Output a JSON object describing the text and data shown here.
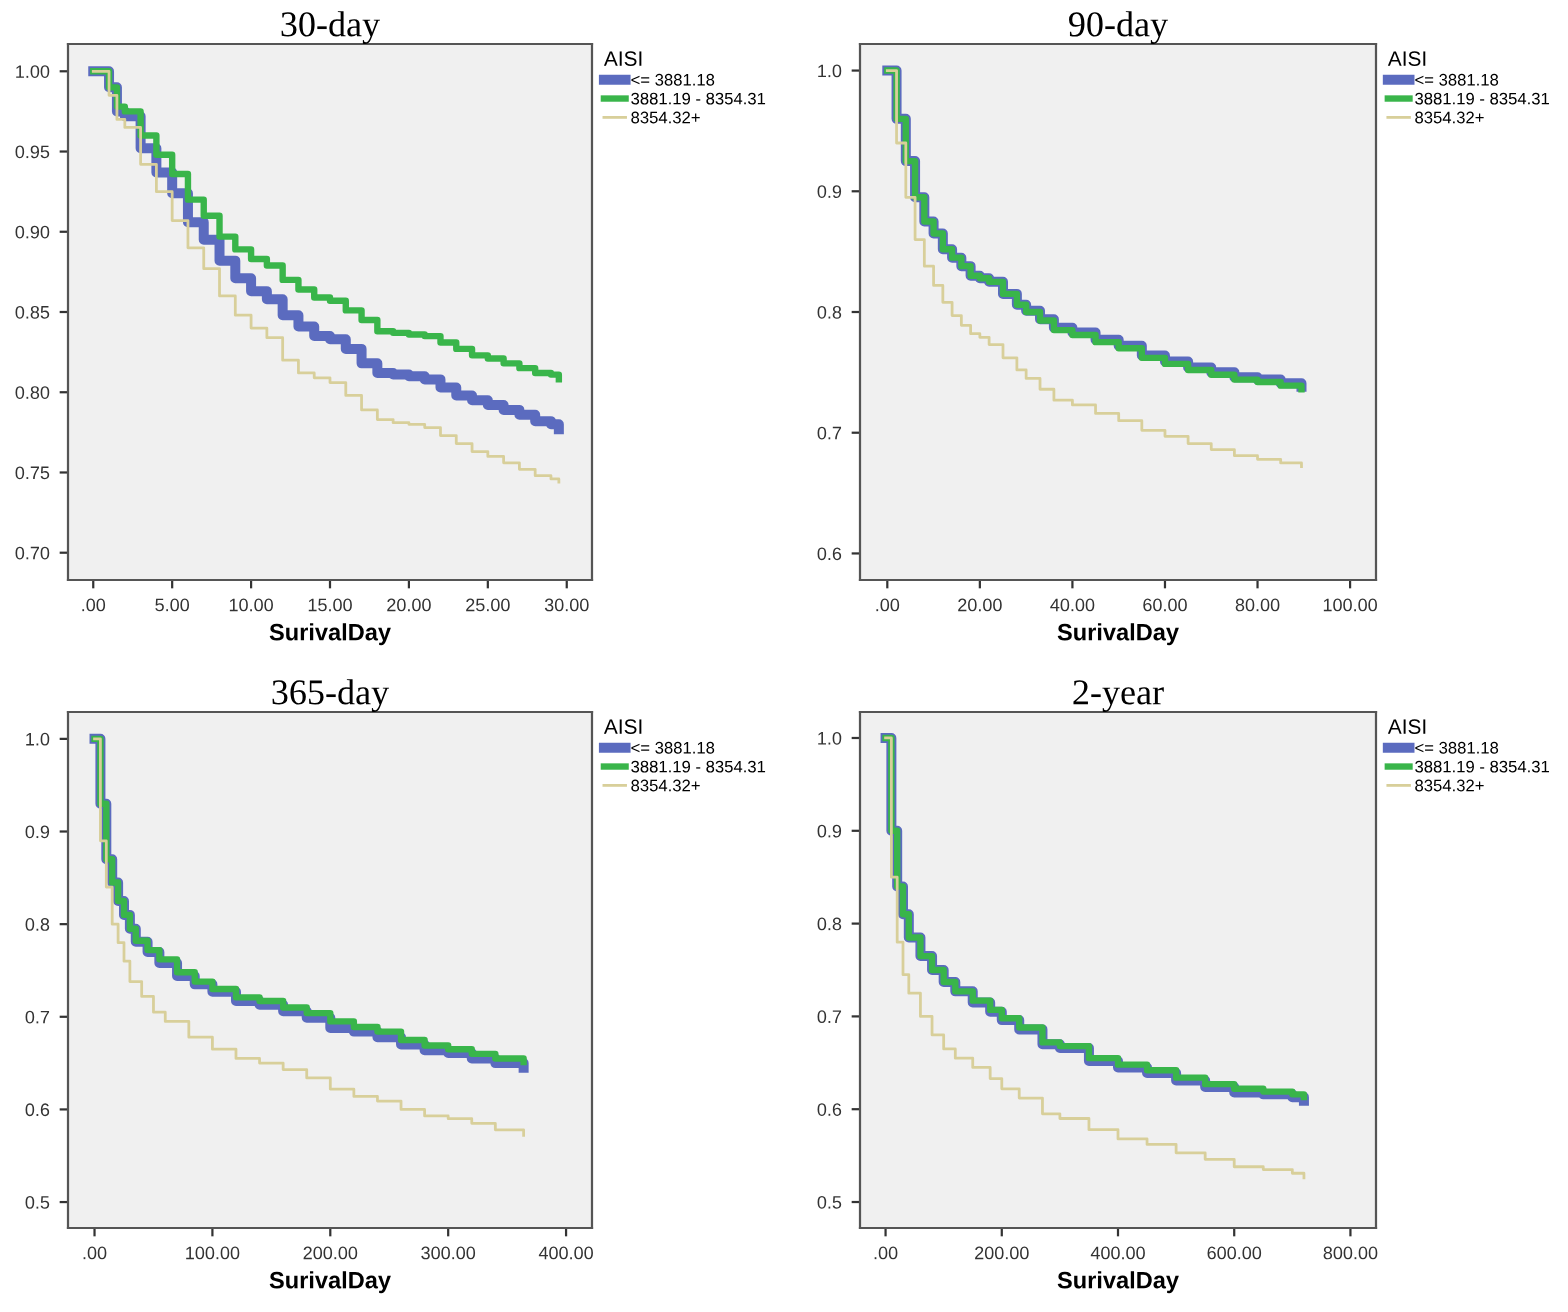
{
  "chart_data": [
    {
      "type": "step",
      "title": "30-day",
      "xlabel": "SurivalDay",
      "legend_title": "AISI",
      "legend": "right",
      "grid": false,
      "marker": "none",
      "line_style": "solid",
      "xlim": [
        -1.6,
        31.6
      ],
      "ylim": [
        0.683,
        1.017
      ],
      "xticks": [
        {
          "value": 0,
          "label": ".00"
        },
        {
          "value": 5,
          "label": "5.00"
        },
        {
          "value": 10,
          "label": "10.00"
        },
        {
          "value": 15,
          "label": "15.00"
        },
        {
          "value": 20,
          "label": "20.00"
        },
        {
          "value": 25,
          "label": "25.00"
        },
        {
          "value": 30,
          "label": "30.00"
        }
      ],
      "yticks": [
        {
          "value": 0.7,
          "label": "0.70"
        },
        {
          "value": 0.75,
          "label": "0.75"
        },
        {
          "value": 0.8,
          "label": "0.80"
        },
        {
          "value": 0.85,
          "label": "0.85"
        },
        {
          "value": 0.9,
          "label": "0.90"
        },
        {
          "value": 0.95,
          "label": "0.95"
        },
        {
          "value": 1.0,
          "label": "1.00"
        }
      ],
      "series": [
        {
          "name": "<= 3881.18",
          "color": "#5b6bbf",
          "x": [
            0,
            1,
            1.5,
            2,
            3,
            4,
            5,
            6,
            7,
            8,
            9,
            10,
            11,
            12,
            13,
            14,
            15,
            16,
            17,
            18,
            19,
            20,
            21,
            22,
            23,
            24,
            25,
            26,
            27,
            28,
            29,
            29.5
          ],
          "values": [
            1,
            0.99,
            0.975,
            0.972,
            0.952,
            0.937,
            0.924,
            0.906,
            0.895,
            0.882,
            0.871,
            0.863,
            0.858,
            0.848,
            0.841,
            0.835,
            0.833,
            0.827,
            0.818,
            0.812,
            0.811,
            0.81,
            0.808,
            0.803,
            0.798,
            0.795,
            0.792,
            0.789,
            0.786,
            0.782,
            0.78,
            0.777
          ]
        },
        {
          "name": "3881.19 - 8354.31",
          "color": "#39b54a",
          "x": [
            0,
            1,
            1.5,
            2,
            3,
            4,
            5,
            6,
            7,
            8,
            9,
            10,
            11,
            12,
            13,
            14,
            15,
            16,
            17,
            18,
            19,
            20,
            21,
            22,
            23,
            24,
            25,
            26,
            27,
            28,
            29,
            29.5
          ],
          "values": [
            1,
            0.99,
            0.978,
            0.975,
            0.96,
            0.948,
            0.936,
            0.92,
            0.91,
            0.897,
            0.889,
            0.883,
            0.879,
            0.87,
            0.864,
            0.859,
            0.857,
            0.851,
            0.845,
            0.838,
            0.837,
            0.836,
            0.835,
            0.831,
            0.827,
            0.823,
            0.821,
            0.818,
            0.815,
            0.812,
            0.811,
            0.808
          ]
        },
        {
          "name": "8354.32+",
          "color": "#d8cf9a",
          "x": [
            0,
            1,
            1.5,
            2,
            3,
            4,
            5,
            6,
            7,
            8,
            9,
            10,
            11,
            12,
            13,
            14,
            15,
            16,
            17,
            18,
            19,
            20,
            21,
            22,
            23,
            24,
            25,
            26,
            27,
            28,
            29,
            29.5
          ],
          "values": [
            1,
            0.985,
            0.97,
            0.965,
            0.942,
            0.925,
            0.907,
            0.89,
            0.877,
            0.86,
            0.848,
            0.84,
            0.834,
            0.82,
            0.812,
            0.809,
            0.806,
            0.798,
            0.789,
            0.783,
            0.781,
            0.78,
            0.778,
            0.773,
            0.768,
            0.763,
            0.76,
            0.756,
            0.752,
            0.748,
            0.746,
            0.744
          ]
        }
      ]
    },
    {
      "type": "step",
      "title": "90-day",
      "xlabel": "SurivalDay",
      "legend_title": "AISI",
      "legend": "right",
      "grid": false,
      "marker": "none",
      "line_style": "solid",
      "xlim": [
        -5.9,
        105.6
      ],
      "ylim": [
        0.578,
        1.022
      ],
      "xticks": [
        {
          "value": 0,
          "label": ".00"
        },
        {
          "value": 20,
          "label": "20.00"
        },
        {
          "value": 40,
          "label": "40.00"
        },
        {
          "value": 60,
          "label": "60.00"
        },
        {
          "value": 80,
          "label": "80.00"
        },
        {
          "value": 100,
          "label": "100.00"
        }
      ],
      "yticks": [
        0.6,
        0.7,
        0.8,
        0.9,
        {
          "value": 1.0,
          "label": "1.0"
        }
      ],
      "series": [
        {
          "name": "<= 3881.18",
          "color": "#5b6bbf",
          "x": [
            0,
            2,
            4,
            6,
            8,
            10,
            12,
            14,
            16,
            18,
            20,
            22,
            25,
            28,
            30,
            33,
            36,
            40,
            45,
            50,
            55,
            60,
            65,
            70,
            75,
            80,
            85,
            89.5
          ],
          "values": [
            1,
            0.96,
            0.925,
            0.895,
            0.875,
            0.865,
            0.852,
            0.845,
            0.838,
            0.83,
            0.828,
            0.825,
            0.815,
            0.806,
            0.801,
            0.794,
            0.787,
            0.783,
            0.777,
            0.772,
            0.764,
            0.759,
            0.754,
            0.75,
            0.746,
            0.744,
            0.741,
            0.738
          ]
        },
        {
          "name": "3881.19 - 8354.31",
          "color": "#39b54a",
          "x": [
            0,
            2,
            4,
            6,
            8,
            10,
            12,
            14,
            16,
            18,
            20,
            22,
            25,
            28,
            30,
            33,
            36,
            40,
            45,
            50,
            55,
            60,
            65,
            70,
            75,
            80,
            85,
            89.5
          ],
          "values": [
            1,
            0.96,
            0.925,
            0.895,
            0.875,
            0.865,
            0.852,
            0.845,
            0.838,
            0.83,
            0.828,
            0.825,
            0.815,
            0.806,
            0.8,
            0.793,
            0.785,
            0.781,
            0.775,
            0.77,
            0.762,
            0.757,
            0.752,
            0.748,
            0.744,
            0.742,
            0.739,
            0.736
          ]
        },
        {
          "name": "8354.32+",
          "color": "#d8cf9a",
          "x": [
            0,
            2,
            4,
            6,
            8,
            10,
            12,
            14,
            16,
            18,
            20,
            22,
            25,
            28,
            30,
            33,
            36,
            40,
            45,
            50,
            55,
            60,
            65,
            70,
            75,
            80,
            85,
            89.5
          ],
          "values": [
            1,
            0.94,
            0.895,
            0.86,
            0.838,
            0.822,
            0.808,
            0.797,
            0.789,
            0.782,
            0.779,
            0.773,
            0.762,
            0.752,
            0.745,
            0.736,
            0.727,
            0.723,
            0.716,
            0.71,
            0.702,
            0.697,
            0.691,
            0.686,
            0.681,
            0.678,
            0.675,
            0.672
          ]
        }
      ]
    },
    {
      "type": "step",
      "title": "365-day",
      "xlabel": "SurivalDay",
      "legend_title": "AISI",
      "legend": "right",
      "grid": false,
      "marker": "none",
      "line_style": "solid",
      "xlim": [
        -22.5,
        422
      ],
      "ylim": [
        0.472,
        1.029
      ],
      "xticks": [
        {
          "value": 0,
          "label": ".00"
        },
        {
          "value": 100,
          "label": "100.00"
        },
        {
          "value": 200,
          "label": "200.00"
        },
        {
          "value": 300,
          "label": "300.00"
        },
        {
          "value": 400,
          "label": "400.00"
        }
      ],
      "yticks": [
        0.5,
        0.6,
        0.7,
        0.8,
        0.9,
        {
          "value": 1.0,
          "label": "1.0"
        }
      ],
      "series": [
        {
          "name": "<= 3881.18",
          "color": "#5b6bbf",
          "x": [
            0,
            5,
            10,
            15,
            20,
            25,
            30,
            35,
            45,
            55,
            70,
            85,
            100,
            120,
            140,
            160,
            180,
            200,
            220,
            240,
            260,
            280,
            300,
            320,
            340,
            364
          ],
          "values": [
            1,
            0.93,
            0.87,
            0.845,
            0.825,
            0.81,
            0.795,
            0.781,
            0.77,
            0.758,
            0.744,
            0.735,
            0.727,
            0.717,
            0.713,
            0.706,
            0.699,
            0.688,
            0.684,
            0.678,
            0.67,
            0.664,
            0.661,
            0.655,
            0.65,
            0.645
          ]
        },
        {
          "name": "3881.19 - 8354.31",
          "color": "#39b54a",
          "x": [
            0,
            5,
            10,
            15,
            20,
            25,
            30,
            35,
            45,
            55,
            70,
            85,
            100,
            120,
            140,
            160,
            180,
            200,
            220,
            240,
            260,
            280,
            300,
            320,
            340,
            364
          ],
          "values": [
            1,
            0.93,
            0.87,
            0.845,
            0.825,
            0.81,
            0.795,
            0.782,
            0.772,
            0.762,
            0.748,
            0.738,
            0.73,
            0.721,
            0.717,
            0.71,
            0.704,
            0.695,
            0.689,
            0.684,
            0.675,
            0.669,
            0.665,
            0.66,
            0.655,
            0.651
          ]
        },
        {
          "name": "8354.32+",
          "color": "#d8cf9a",
          "x": [
            0,
            5,
            10,
            15,
            20,
            25,
            30,
            40,
            50,
            60,
            80,
            100,
            120,
            140,
            160,
            180,
            200,
            220,
            240,
            260,
            280,
            300,
            320,
            340,
            364
          ],
          "values": [
            1,
            0.89,
            0.84,
            0.8,
            0.78,
            0.76,
            0.738,
            0.722,
            0.705,
            0.695,
            0.678,
            0.665,
            0.655,
            0.65,
            0.643,
            0.634,
            0.622,
            0.614,
            0.609,
            0.6,
            0.593,
            0.59,
            0.585,
            0.578,
            0.572
          ]
        }
      ]
    },
    {
      "type": "step",
      "title": "2-year",
      "xlabel": "SurivalDay",
      "legend_title": "AISI",
      "legend": "right",
      "grid": false,
      "marker": "none",
      "line_style": "solid",
      "xlim": [
        -44,
        844
      ],
      "ylim": [
        0.472,
        1.028
      ],
      "xticks": [
        {
          "value": 0,
          "label": ".00"
        },
        {
          "value": 200,
          "label": "200.00"
        },
        {
          "value": 400,
          "label": "400.00"
        },
        {
          "value": 600,
          "label": "600.00"
        },
        {
          "value": 800,
          "label": "800.00"
        }
      ],
      "yticks": [
        0.5,
        0.6,
        0.7,
        0.8,
        0.9,
        {
          "value": 1.0,
          "label": "1.0"
        }
      ],
      "series": [
        {
          "name": "<= 3881.18",
          "color": "#5b6bbf",
          "x": [
            0,
            10,
            20,
            30,
            40,
            60,
            80,
            100,
            120,
            150,
            180,
            200,
            230,
            270,
            300,
            350,
            400,
            450,
            500,
            550,
            600,
            650,
            700,
            720
          ],
          "values": [
            1,
            0.9,
            0.84,
            0.81,
            0.785,
            0.765,
            0.75,
            0.737,
            0.727,
            0.715,
            0.705,
            0.696,
            0.686,
            0.67,
            0.666,
            0.652,
            0.645,
            0.639,
            0.631,
            0.624,
            0.618,
            0.616,
            0.613,
            0.609
          ]
        },
        {
          "name": "3881.19 - 8354.31",
          "color": "#39b54a",
          "x": [
            0,
            10,
            20,
            30,
            40,
            60,
            80,
            100,
            120,
            150,
            180,
            200,
            230,
            270,
            300,
            350,
            400,
            450,
            500,
            550,
            600,
            650,
            700,
            720
          ],
          "values": [
            1,
            0.9,
            0.84,
            0.81,
            0.785,
            0.765,
            0.75,
            0.737,
            0.727,
            0.717,
            0.707,
            0.698,
            0.688,
            0.672,
            0.668,
            0.655,
            0.648,
            0.642,
            0.634,
            0.627,
            0.622,
            0.619,
            0.616,
            0.613
          ]
        },
        {
          "name": "8354.32+",
          "color": "#d8cf9a",
          "x": [
            0,
            10,
            20,
            30,
            40,
            60,
            80,
            100,
            120,
            150,
            180,
            200,
            230,
            270,
            300,
            350,
            400,
            450,
            500,
            550,
            600,
            650,
            700,
            720
          ],
          "values": [
            1,
            0.85,
            0.78,
            0.745,
            0.725,
            0.7,
            0.68,
            0.665,
            0.655,
            0.645,
            0.633,
            0.622,
            0.612,
            0.595,
            0.59,
            0.578,
            0.568,
            0.562,
            0.553,
            0.546,
            0.538,
            0.535,
            0.531,
            0.526
          ]
        }
      ]
    }
  ]
}
